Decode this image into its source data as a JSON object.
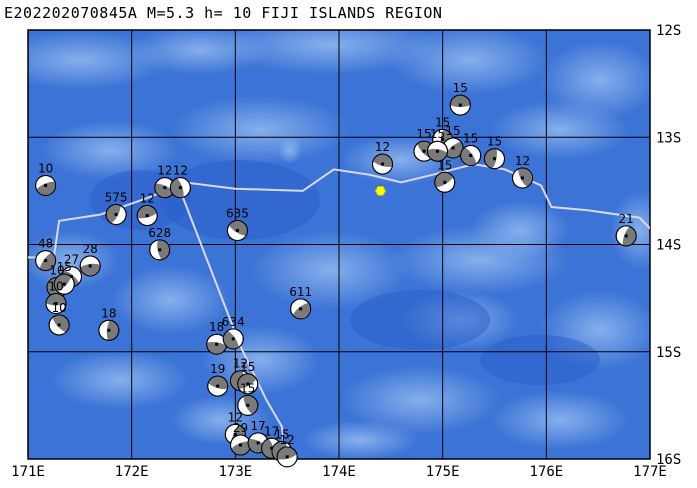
{
  "title": "E202202070845A M=5.3 h= 10 FIJI ISLANDS REGION",
  "map": {
    "lon_range": [
      171,
      177
    ],
    "lat_range": [
      12,
      16
    ],
    "lon_ticks": [
      "171E",
      "172E",
      "173E",
      "174E",
      "175E",
      "176E",
      "177E"
    ],
    "lat_ticks": [
      "12S",
      "13S",
      "14S",
      "15S",
      "16S"
    ],
    "colors": {
      "ocean": "#3b73d6",
      "ocean_light": "#6d9ce6",
      "ocean_deep": "#2a5ec9",
      "grid": "#000000",
      "plate_boundary": "#d8d8e8",
      "epicenter": "#ffff00"
    }
  },
  "epicenter": {
    "lon": 174.4,
    "lat": 13.5
  },
  "events": [
    {
      "label": "15",
      "lon": 175.17,
      "lat": 12.7
    },
    {
      "label": "15",
      "lon": 174.82,
      "lat": 13.13
    },
    {
      "label": "15",
      "lon": 175.0,
      "lat": 13.02
    },
    {
      "label": "15",
      "lon": 175.1,
      "lat": 13.1
    },
    {
      "label": "15",
      "lon": 174.95,
      "lat": 13.13
    },
    {
      "label": "15",
      "lon": 175.27,
      "lat": 13.17
    },
    {
      "label": "15",
      "lon": 175.5,
      "lat": 13.2
    },
    {
      "label": "15",
      "lon": 175.02,
      "lat": 13.42
    },
    {
      "label": "12",
      "lon": 174.42,
      "lat": 13.25
    },
    {
      "label": "12",
      "lon": 175.77,
      "lat": 13.38
    },
    {
      "label": "21",
      "lon": 176.77,
      "lat": 13.92
    },
    {
      "label": "10",
      "lon": 171.17,
      "lat": 13.45
    },
    {
      "label": "12",
      "lon": 172.32,
      "lat": 13.47
    },
    {
      "label": "12",
      "lon": 172.47,
      "lat": 13.47
    },
    {
      "label": "575",
      "lon": 171.85,
      "lat": 13.72
    },
    {
      "label": "12",
      "lon": 172.15,
      "lat": 13.73
    },
    {
      "label": "635",
      "lon": 173.02,
      "lat": 13.87
    },
    {
      "label": "628",
      "lon": 172.27,
      "lat": 14.05
    },
    {
      "label": "48",
      "lon": 171.17,
      "lat": 14.15
    },
    {
      "label": "28",
      "lon": 171.6,
      "lat": 14.2
    },
    {
      "label": "27",
      "lon": 171.42,
      "lat": 14.3
    },
    {
      "label": "10",
      "lon": 171.28,
      "lat": 14.4
    },
    {
      "label": "15",
      "lon": 171.35,
      "lat": 14.37
    },
    {
      "label": "10",
      "lon": 171.27,
      "lat": 14.55
    },
    {
      "label": "10",
      "lon": 171.3,
      "lat": 14.75
    },
    {
      "label": "18",
      "lon": 171.78,
      "lat": 14.8
    },
    {
      "label": "611",
      "lon": 173.63,
      "lat": 14.6
    },
    {
      "label": "18",
      "lon": 172.82,
      "lat": 14.93
    },
    {
      "label": "634",
      "lon": 172.98,
      "lat": 14.88
    },
    {
      "label": "12",
      "lon": 173.05,
      "lat": 15.27
    },
    {
      "label": "15",
      "lon": 173.12,
      "lat": 15.3
    },
    {
      "label": "19",
      "lon": 172.83,
      "lat": 15.32
    },
    {
      "label": "15",
      "lon": 173.12,
      "lat": 15.5
    },
    {
      "label": "12",
      "lon": 173.0,
      "lat": 15.77
    },
    {
      "label": "29",
      "lon": 173.05,
      "lat": 15.87
    },
    {
      "label": "17",
      "lon": 173.22,
      "lat": 15.85
    },
    {
      "label": "17",
      "lon": 173.35,
      "lat": 15.9
    },
    {
      "label": "15",
      "lon": 173.45,
      "lat": 15.93
    },
    {
      "label": "12",
      "lon": 173.5,
      "lat": 15.98
    }
  ]
}
